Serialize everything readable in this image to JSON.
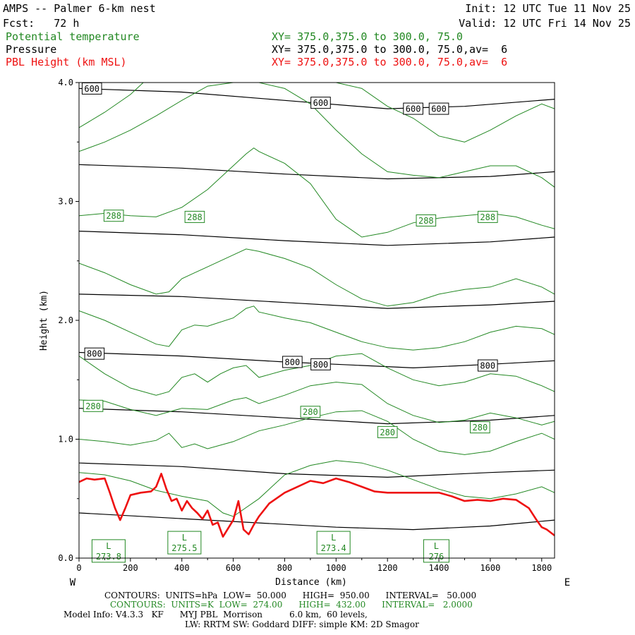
{
  "header": {
    "title": "AMPS -- Palmer 6-km nest",
    "init": "Init: 12 UTC Tue 11 Nov 25",
    "fcst": "Fcst:   72 h",
    "valid": "Valid: 12 UTC Fri 14 Nov 25",
    "fields": [
      {
        "label": "Potential temperature",
        "xy": "XY= 375.0,375.0 to 300.0, 75.0",
        "color": "#228822"
      },
      {
        "label": "Pressure",
        "xy": "XY= 375.0,375.0 to 300.0, 75.0,av=  6",
        "color": "#000000"
      },
      {
        "label": "PBL Height (km MSL)",
        "xy": "XY= 375.0,375.0 to 300.0, 75.0,av=  6",
        "color": "#ee1111"
      }
    ]
  },
  "chart_data": {
    "type": "line",
    "title": "AMPS -- Palmer 6-km nest",
    "xlabel": "Distance (km)",
    "ylabel": "Height (km)",
    "xlim": [
      0,
      1850
    ],
    "ylim": [
      0,
      4.0
    ],
    "x_ticks": [
      "0",
      "200",
      "400",
      "600",
      "800",
      "1000",
      "1200",
      "1400",
      "1600",
      "1800"
    ],
    "y_ticks": [
      "0.0",
      "1.0",
      "2.0",
      "3.0",
      "4.0"
    ],
    "x_end_left": "W",
    "x_end_right": "E",
    "colors": {
      "pressure": "#000000",
      "theta": "#228822",
      "pbl": "#ee1111"
    },
    "pressure_isobars": [
      {
        "label": "",
        "x": [
          0,
          500,
          1000,
          1300,
          1600,
          1850
        ],
        "y": [
          0.38,
          0.32,
          0.26,
          0.24,
          0.27,
          0.32
        ]
      },
      {
        "label": "",
        "x": [
          0,
          400,
          800,
          1200,
          1600,
          1850
        ],
        "y": [
          0.8,
          0.77,
          0.71,
          0.68,
          0.72,
          0.74
        ]
      },
      {
        "label": "",
        "x": [
          0,
          400,
          800,
          1200,
          1600,
          1850
        ],
        "y": [
          1.26,
          1.23,
          1.18,
          1.13,
          1.16,
          1.2
        ]
      },
      {
        "label": "800",
        "x": [
          0,
          400,
          800,
          1000,
          1300,
          1600,
          1850
        ],
        "y": [
          1.73,
          1.7,
          1.65,
          1.63,
          1.6,
          1.63,
          1.66
        ]
      },
      {
        "label": "",
        "x": [
          0,
          400,
          800,
          1200,
          1600,
          1850
        ],
        "y": [
          2.22,
          2.2,
          2.15,
          2.1,
          2.13,
          2.16
        ]
      },
      {
        "label": "",
        "x": [
          0,
          400,
          800,
          1200,
          1600,
          1850
        ],
        "y": [
          2.75,
          2.72,
          2.67,
          2.63,
          2.66,
          2.7
        ]
      },
      {
        "label": "",
        "x": [
          0,
          400,
          800,
          1200,
          1600,
          1850
        ],
        "y": [
          3.31,
          3.28,
          3.23,
          3.19,
          3.21,
          3.25
        ]
      },
      {
        "label": "600",
        "x": [
          0,
          400,
          800,
          1200,
          1500,
          1850
        ],
        "y": [
          3.95,
          3.92,
          3.85,
          3.78,
          3.8,
          3.86
        ]
      }
    ],
    "theta_isentropes": [
      {
        "label": "",
        "x": [
          0,
          100,
          200,
          300,
          400,
          500,
          560,
          600,
          700,
          800,
          900,
          1000,
          1100,
          1200,
          1300,
          1400,
          1500,
          1600,
          1700,
          1800,
          1850
        ],
        "y": [
          0.72,
          0.7,
          0.65,
          0.57,
          0.52,
          0.48,
          0.38,
          0.35,
          0.5,
          0.7,
          0.78,
          0.82,
          0.8,
          0.74,
          0.66,
          0.58,
          0.52,
          0.5,
          0.54,
          0.6,
          0.55
        ]
      },
      {
        "label": "",
        "x": [
          0,
          100,
          200,
          300,
          350,
          400,
          450,
          500,
          600,
          700,
          800,
          900,
          1000,
          1100,
          1200,
          1300,
          1400,
          1500,
          1600,
          1700,
          1800,
          1850
        ],
        "y": [
          1.0,
          0.98,
          0.95,
          0.99,
          1.05,
          0.93,
          0.96,
          0.92,
          0.98,
          1.07,
          1.12,
          1.18,
          1.23,
          1.24,
          1.15,
          1.0,
          0.9,
          0.87,
          0.9,
          0.98,
          1.05,
          1.0
        ]
      },
      {
        "label": "280",
        "x": [
          0,
          100,
          200,
          300,
          400,
          500,
          600,
          650,
          700,
          800,
          900,
          1000,
          1100,
          1200,
          1300,
          1400,
          1500,
          1600,
          1700,
          1800,
          1850
        ],
        "y": [
          1.33,
          1.32,
          1.25,
          1.2,
          1.26,
          1.25,
          1.33,
          1.35,
          1.3,
          1.37,
          1.45,
          1.48,
          1.46,
          1.3,
          1.2,
          1.14,
          1.16,
          1.22,
          1.18,
          1.12,
          1.15
        ]
      },
      {
        "label": "",
        "x": [
          0,
          100,
          200,
          300,
          350,
          400,
          450,
          500,
          550,
          600,
          650,
          700,
          800,
          900,
          1000,
          1100,
          1200,
          1300,
          1400,
          1500,
          1600,
          1700,
          1800,
          1850
        ],
        "y": [
          1.7,
          1.55,
          1.43,
          1.37,
          1.4,
          1.52,
          1.55,
          1.48,
          1.55,
          1.6,
          1.62,
          1.52,
          1.58,
          1.62,
          1.7,
          1.72,
          1.6,
          1.5,
          1.45,
          1.48,
          1.55,
          1.53,
          1.45,
          1.4
        ]
      },
      {
        "label": "",
        "x": [
          0,
          100,
          200,
          300,
          350,
          400,
          450,
          500,
          600,
          650,
          680,
          700,
          800,
          900,
          1000,
          1100,
          1200,
          1300,
          1400,
          1500,
          1600,
          1700,
          1800,
          1850
        ],
        "y": [
          2.08,
          2.0,
          1.9,
          1.8,
          1.78,
          1.92,
          1.96,
          1.95,
          2.02,
          2.1,
          2.12,
          2.07,
          2.02,
          1.98,
          1.9,
          1.82,
          1.77,
          1.75,
          1.77,
          1.82,
          1.9,
          1.95,
          1.93,
          1.88
        ]
      },
      {
        "label": "",
        "x": [
          0,
          100,
          200,
          300,
          350,
          400,
          450,
          500,
          600,
          650,
          700,
          800,
          900,
          1000,
          1100,
          1200,
          1300,
          1400,
          1500,
          1600,
          1700,
          1800,
          1850
        ],
        "y": [
          2.48,
          2.4,
          2.3,
          2.22,
          2.24,
          2.35,
          2.4,
          2.45,
          2.55,
          2.6,
          2.58,
          2.52,
          2.44,
          2.3,
          2.18,
          2.12,
          2.15,
          2.22,
          2.26,
          2.28,
          2.35,
          2.28,
          2.22
        ]
      },
      {
        "label": "288",
        "x": [
          0,
          100,
          200,
          300,
          400,
          500,
          600,
          650,
          680,
          700,
          800,
          900,
          1000,
          1100,
          1200,
          1300,
          1400,
          1500,
          1600,
          1700,
          1800,
          1850
        ],
        "y": [
          2.88,
          2.9,
          2.88,
          2.87,
          2.95,
          3.1,
          3.3,
          3.4,
          3.45,
          3.42,
          3.32,
          3.15,
          2.85,
          2.7,
          2.74,
          2.82,
          2.86,
          2.88,
          2.9,
          2.87,
          2.8,
          2.77
        ]
      },
      {
        "label": "",
        "x": [
          0,
          100,
          200,
          300,
          400,
          500,
          600,
          650,
          700,
          800,
          900,
          1000,
          1100,
          1200,
          1300,
          1400,
          1500,
          1600,
          1700,
          1800,
          1850
        ],
        "y": [
          3.42,
          3.5,
          3.6,
          3.72,
          3.85,
          3.97,
          4.0,
          4.0,
          4.0,
          3.95,
          3.82,
          3.6,
          3.4,
          3.25,
          3.22,
          3.2,
          3.25,
          3.3,
          3.3,
          3.2,
          3.12
        ]
      },
      {
        "label": "",
        "x": [
          0,
          100,
          200,
          250,
          1000,
          1100,
          1200,
          1300,
          1400,
          1500,
          1600,
          1700,
          1800,
          1850
        ],
        "y": [
          3.62,
          3.75,
          3.9,
          4.0,
          4.0,
          3.95,
          3.8,
          3.7,
          3.55,
          3.5,
          3.6,
          3.72,
          3.82,
          3.78
        ]
      }
    ],
    "theta_contour_labels": [
      {
        "text": "288",
        "x": 135,
        "y": 2.88
      },
      {
        "text": "288",
        "x": 450,
        "y": 2.87
      },
      {
        "text": "288",
        "x": 1350,
        "y": 2.84
      },
      {
        "text": "288",
        "x": 1590,
        "y": 2.87
      },
      {
        "text": "280",
        "x": 55,
        "y": 1.28
      },
      {
        "text": "280",
        "x": 900,
        "y": 1.23
      },
      {
        "text": "280",
        "x": 1200,
        "y": 1.06
      },
      {
        "text": "280",
        "x": 1560,
        "y": 1.1
      }
    ],
    "pressure_contour_labels": [
      {
        "text": "600",
        "x": 50,
        "y": 3.95
      },
      {
        "text": "600",
        "x": 940,
        "y": 3.83
      },
      {
        "text": "600",
        "x": 1300,
        "y": 3.78
      },
      {
        "text": "600",
        "x": 1400,
        "y": 3.78
      },
      {
        "text": "800",
        "x": 60,
        "y": 1.72
      },
      {
        "text": "800",
        "x": 830,
        "y": 1.65
      },
      {
        "text": "800",
        "x": 940,
        "y": 1.63
      },
      {
        "text": "800",
        "x": 1590,
        "y": 1.62
      }
    ],
    "lows": [
      {
        "letter": "L",
        "value": "273.8",
        "x": 115,
        "y": 0.06
      },
      {
        "letter": "L",
        "value": "275.5",
        "x": 410,
        "y": 0.13
      },
      {
        "letter": "L",
        "value": "273.4",
        "x": 990,
        "y": 0.13
      },
      {
        "letter": "L",
        "value": "276",
        "x": 1390,
        "y": 0.06
      }
    ],
    "pbl_height": {
      "name": "PBL Height (km MSL)",
      "x": [
        0,
        30,
        60,
        100,
        120,
        140,
        160,
        180,
        200,
        240,
        280,
        300,
        320,
        340,
        360,
        380,
        400,
        420,
        440,
        460,
        480,
        500,
        520,
        540,
        560,
        580,
        600,
        620,
        640,
        660,
        680,
        700,
        740,
        800,
        850,
        900,
        950,
        1000,
        1050,
        1100,
        1150,
        1200,
        1250,
        1300,
        1350,
        1400,
        1450,
        1500,
        1550,
        1600,
        1650,
        1700,
        1750,
        1780,
        1800,
        1820,
        1850
      ],
      "y": [
        0.64,
        0.67,
        0.66,
        0.67,
        0.55,
        0.42,
        0.32,
        0.42,
        0.53,
        0.55,
        0.56,
        0.6,
        0.71,
        0.58,
        0.48,
        0.5,
        0.4,
        0.48,
        0.42,
        0.38,
        0.33,
        0.4,
        0.28,
        0.3,
        0.18,
        0.25,
        0.32,
        0.48,
        0.24,
        0.2,
        0.28,
        0.35,
        0.46,
        0.55,
        0.6,
        0.65,
        0.63,
        0.67,
        0.64,
        0.6,
        0.56,
        0.55,
        0.55,
        0.55,
        0.55,
        0.55,
        0.52,
        0.48,
        0.49,
        0.48,
        0.5,
        0.49,
        0.42,
        0.32,
        0.26,
        0.24,
        0.19
      ]
    }
  },
  "footer": {
    "pressure_contours": "CONTOURS:  UNITS=hPa  LOW=  50.000      HIGH=  950.00      INTERVAL=   50.000",
    "theta_contours": "CONTOURS:  UNITS=K  LOW=  274.00      HIGH=  432.00      INTERVAL=   2.0000",
    "model_info_1": "Model Info: V4.3.3   KF      MYJ PBL  Morrison          6.0 km,  60 levels,",
    "model_info_2": "LW: RRTM SW: Goddard DIFF: simple KM: 2D Smagor"
  }
}
